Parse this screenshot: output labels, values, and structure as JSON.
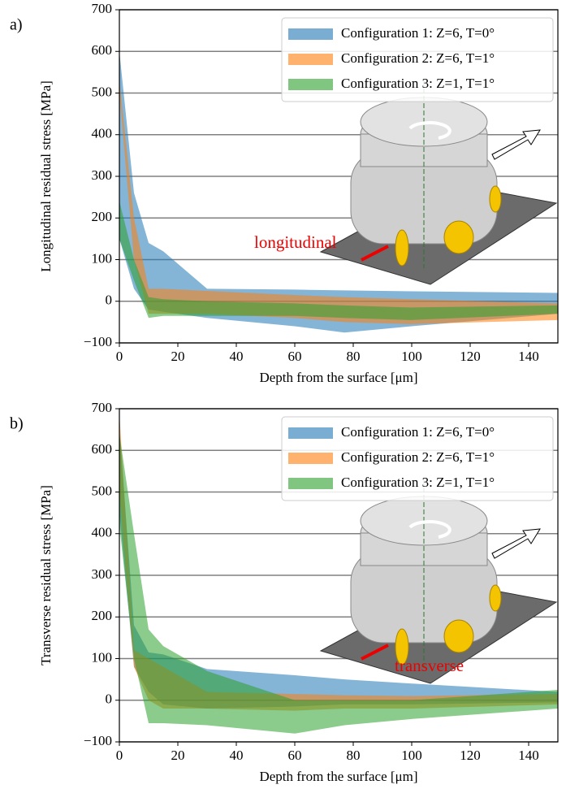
{
  "chart_data": [
    {
      "type": "band",
      "panel_label": "a)",
      "ylabel": "Longitudinal residual stress [MPa]",
      "xlabel": "Depth from the surface [μm]",
      "annotation": "longitudinal",
      "xlim": [
        0,
        150
      ],
      "xticks": [
        0,
        20,
        40,
        60,
        80,
        100,
        120,
        140
      ],
      "ylim": [
        -100,
        700
      ],
      "yticks": [
        {
          "value": -100,
          "label": "−100"
        },
        0,
        100,
        200,
        300,
        400,
        500,
        600,
        700
      ],
      "grid": true,
      "legend": "upper right",
      "series": [
        {
          "name": "Configuration 1: Z=6, T=0°",
          "color": "#1f77b4",
          "x": [
            0,
            5,
            10,
            15,
            30,
            60,
            77,
            100,
            150
          ],
          "upper": [
            600,
            260,
            140,
            120,
            30,
            28,
            26,
            24,
            20
          ],
          "lower": [
            150,
            30,
            -20,
            -25,
            -40,
            -60,
            -75,
            -60,
            -30
          ]
        },
        {
          "name": "Configuration 2: Z=6, T=1°",
          "color": "#ff7f0e",
          "x": [
            0,
            5,
            10,
            15,
            30,
            60,
            77,
            100,
            150
          ],
          "upper": [
            530,
            200,
            30,
            30,
            25,
            15,
            10,
            5,
            -5
          ],
          "lower": [
            500,
            100,
            -30,
            -30,
            -30,
            -40,
            -50,
            -55,
            -45
          ]
        },
        {
          "name": "Configuration 3: Z=1, T=1°",
          "color": "#2ca02c",
          "x": [
            0,
            5,
            10,
            15,
            30,
            60,
            77,
            100,
            150
          ],
          "upper": [
            240,
            100,
            10,
            5,
            0,
            -5,
            -10,
            -15,
            -10
          ],
          "lower": [
            150,
            50,
            -40,
            -35,
            -35,
            -35,
            -40,
            -45,
            -30
          ]
        }
      ]
    },
    {
      "type": "band",
      "panel_label": "b)",
      "ylabel": "Transverse residual stress [MPa]",
      "xlabel": "Depth from the surface [μm]",
      "annotation": "transverse",
      "xlim": [
        0,
        150
      ],
      "xticks": [
        0,
        20,
        40,
        60,
        80,
        100,
        120,
        140
      ],
      "ylim": [
        -100,
        700
      ],
      "yticks": [
        {
          "value": -100,
          "label": "−100"
        },
        0,
        100,
        200,
        300,
        400,
        500,
        600,
        700
      ],
      "grid": true,
      "legend": "upper right",
      "series": [
        {
          "name": "Configuration 1: Z=6, T=0°",
          "color": "#1f77b4",
          "x": [
            0,
            5,
            10,
            15,
            30,
            60,
            77,
            100,
            150
          ],
          "upper": [
            650,
            180,
            115,
            110,
            75,
            60,
            50,
            40,
            20
          ],
          "lower": [
            450,
            80,
            20,
            -10,
            -20,
            -15,
            -10,
            -10,
            -5
          ]
        },
        {
          "name": "Configuration 2: Z=6, T=1°",
          "color": "#ff7f0e",
          "x": [
            0,
            5,
            10,
            15,
            30,
            60,
            77,
            100,
            150
          ],
          "upper": [
            690,
            120,
            100,
            80,
            20,
            15,
            12,
            10,
            15
          ],
          "lower": [
            500,
            80,
            0,
            -20,
            -20,
            -25,
            -20,
            -20,
            -10
          ]
        },
        {
          "name": "Configuration 3: Z=1, T=1°",
          "color": "#2ca02c",
          "x": [
            0,
            5,
            10,
            15,
            30,
            60,
            77,
            100,
            150
          ],
          "upper": [
            640,
            400,
            170,
            130,
            70,
            0,
            0,
            0,
            25
          ],
          "lower": [
            420,
            100,
            -55,
            -55,
            -60,
            -80,
            -60,
            -45,
            -20
          ]
        }
      ]
    }
  ]
}
